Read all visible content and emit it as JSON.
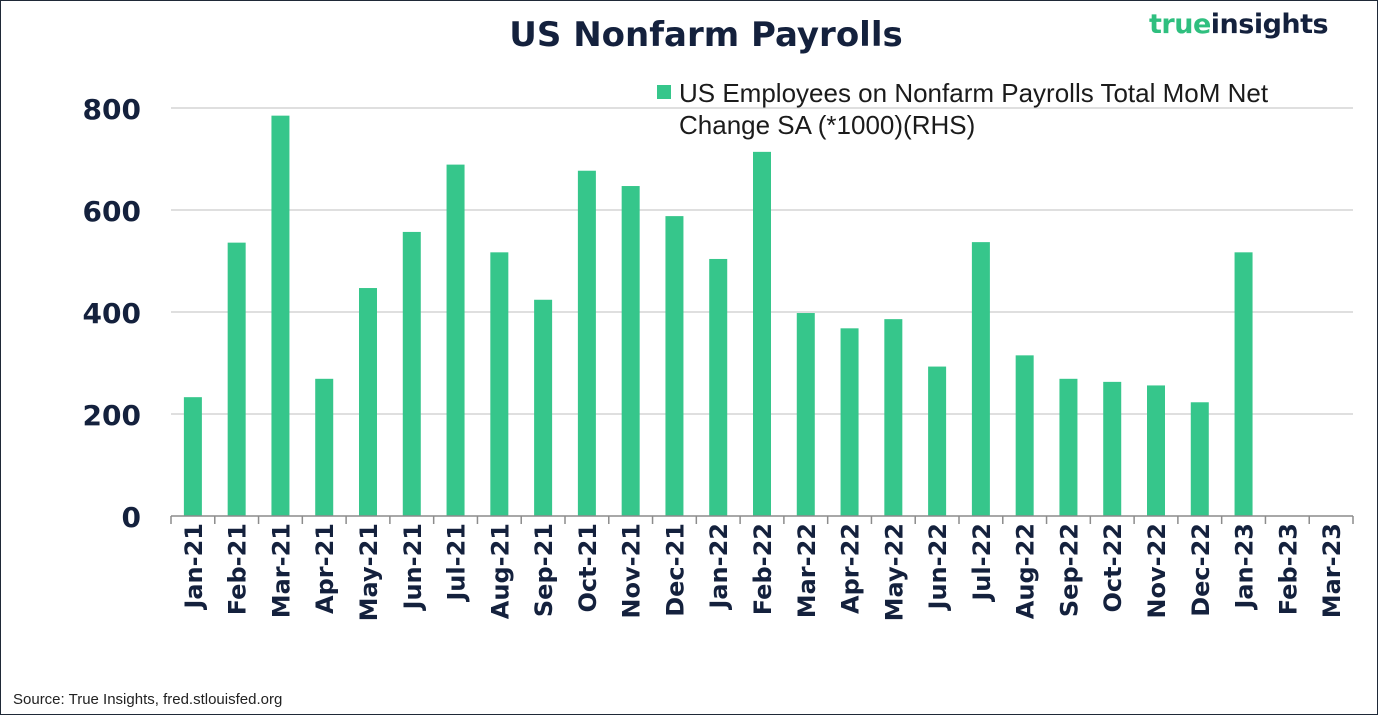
{
  "title": "US Nonfarm Payrolls",
  "logo": {
    "word1": "true",
    "word2": "insights"
  },
  "source": "Source: True Insights, fred.stlouisfed.org",
  "colors": {
    "bar": "#36c68b",
    "text": "#14213d",
    "grid": "#bfbfbf",
    "logo_green": "#2fbf7f"
  },
  "chart_data": {
    "type": "bar",
    "title": "US Nonfarm Payrolls",
    "xlabel": "",
    "ylabel": "",
    "ylim": [
      0,
      800
    ],
    "yticks": [
      0,
      200,
      400,
      600,
      800
    ],
    "grid": true,
    "legend_position": "top-right",
    "categories": [
      "Jan-21",
      "Feb-21",
      "Mar-21",
      "Apr-21",
      "May-21",
      "Jun-21",
      "Jul-21",
      "Aug-21",
      "Sep-21",
      "Oct-21",
      "Nov-21",
      "Dec-21",
      "Jan-22",
      "Feb-22",
      "Mar-22",
      "Apr-22",
      "May-22",
      "Jun-22",
      "Jul-22",
      "Aug-22",
      "Sep-22",
      "Oct-22",
      "Nov-22",
      "Dec-22",
      "Jan-23",
      "Feb-23",
      "Mar-23"
    ],
    "series": [
      {
        "name": "US Employees on Nonfarm Payrolls Total MoM Net Change SA (*1000)(RHS)",
        "values": [
          233,
          536,
          785,
          269,
          447,
          557,
          689,
          517,
          424,
          677,
          647,
          588,
          504,
          714,
          398,
          368,
          386,
          293,
          537,
          315,
          269,
          263,
          256,
          223,
          517,
          null,
          null
        ]
      }
    ]
  }
}
